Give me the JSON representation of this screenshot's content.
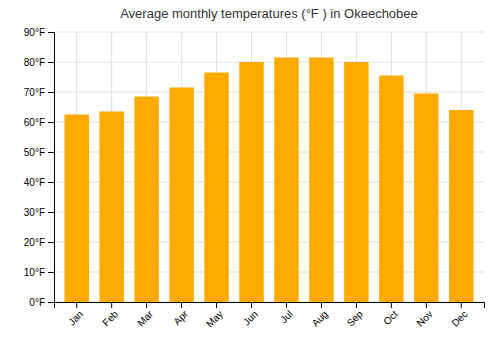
{
  "chart_data": {
    "type": "bar",
    "title": "Average monthly temperatures (°F ) in Okeechobee",
    "categories": [
      "Jan",
      "Feb",
      "Mar",
      "Apr",
      "May",
      "Jun",
      "Jul",
      "Aug",
      "Sep",
      "Oct",
      "Nov",
      "Dec"
    ],
    "values": [
      62.5,
      63.5,
      68.5,
      71.5,
      76.5,
      80.0,
      81.5,
      81.5,
      80.0,
      75.5,
      69.5,
      64.0
    ],
    "color": "#FFAA00",
    "ylim": [
      0,
      90
    ],
    "yticks": [
      {
        "value": 0,
        "label": "0°F"
      },
      {
        "value": 10,
        "label": "10°F"
      },
      {
        "value": 20,
        "label": "20°F"
      },
      {
        "value": 30,
        "label": "30°F"
      },
      {
        "value": 40,
        "label": "40°F"
      },
      {
        "value": 50,
        "label": "50°F"
      },
      {
        "value": 60,
        "label": "60°F"
      },
      {
        "value": 70,
        "label": "70°F"
      },
      {
        "value": 80,
        "label": "80°F"
      },
      {
        "value": 90,
        "label": "90°F"
      }
    ],
    "grid": true
  }
}
